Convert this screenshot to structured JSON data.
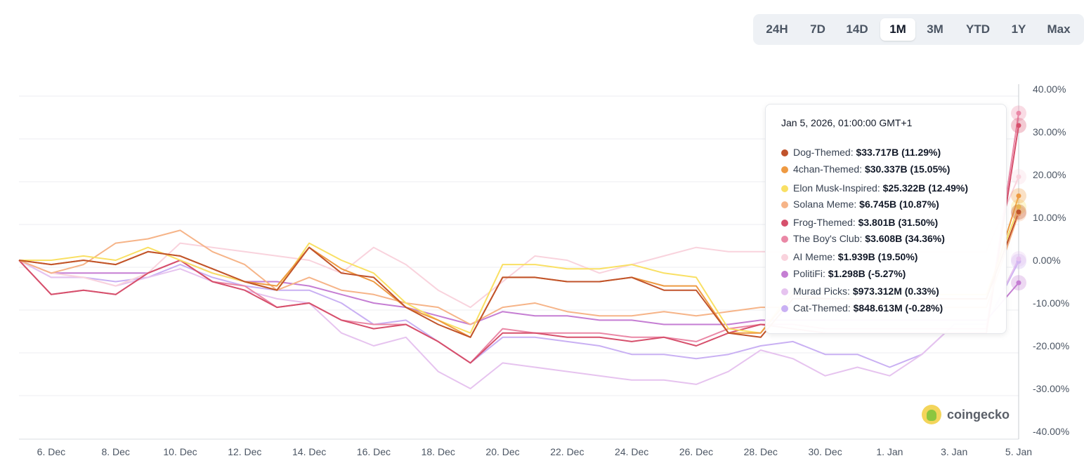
{
  "range_selector": {
    "options": [
      "24H",
      "7D",
      "14D",
      "1M",
      "3M",
      "YTD",
      "1Y",
      "Max"
    ],
    "active": "1M"
  },
  "tooltip": {
    "date": "Jan 5, 2026, 01:00:00 GMT+1",
    "rows": [
      {
        "name": "Dog-Themed:",
        "value": "$33.717B (11.29%)",
        "color": "#c0532b"
      },
      {
        "name": "4chan-Themed:",
        "value": "$30.337B (15.05%)",
        "color": "#ee9a42"
      },
      {
        "name": "Elon Musk-Inspired:",
        "value": "$25.322B (12.49%)",
        "color": "#f9e064"
      },
      {
        "name": "Solana Meme:",
        "value": "$6.745B (10.87%)",
        "color": "#f6b488"
      },
      {
        "name": "Frog-Themed:",
        "value": "$3.801B (31.50%)",
        "color": "#d6506c"
      },
      {
        "name": "The Boy's Club:",
        "value": "$3.608B (34.36%)",
        "color": "#ea88a6"
      },
      {
        "name": "AI Meme:",
        "value": "$1.939B (19.50%)",
        "color": "#f9d3dd"
      },
      {
        "name": "PolitiFi:",
        "value": "$1.298B (-5.27%)",
        "color": "#c57ed3"
      },
      {
        "name": "Murad Picks:",
        "value": "$973.312M (0.33%)",
        "color": "#e6c3ef"
      },
      {
        "name": "Cat-Themed:",
        "value": "$848.613M (-0.28%)",
        "color": "#c9b0f3"
      }
    ]
  },
  "brand": {
    "name": "coingecko"
  },
  "chart_data": {
    "type": "line",
    "x": [
      "5. Dec",
      "6. Dec",
      "7. Dec",
      "8. Dec",
      "9. Dec",
      "10. Dec",
      "11. Dec",
      "12. Dec",
      "13. Dec",
      "14. Dec",
      "15. Dec",
      "16. Dec",
      "17. Dec",
      "18. Dec",
      "19. Dec",
      "20. Dec",
      "21. Dec",
      "22. Dec",
      "23. Dec",
      "24. Dec",
      "25. Dec",
      "26. Dec",
      "27. Dec",
      "28. Dec",
      "29. Dec",
      "30. Dec",
      "31. Dec",
      "1. Jan",
      "2. Jan",
      "3. Jan",
      "4. Jan",
      "5. Jan"
    ],
    "x_tick_labels": [
      "6. Dec",
      "8. Dec",
      "10. Dec",
      "12. Dec",
      "14. Dec",
      "16. Dec",
      "18. Dec",
      "20. Dec",
      "22. Dec",
      "24. Dec",
      "26. Dec",
      "28. Dec",
      "30. Dec",
      "1. Jan",
      "3. Jan",
      "5. Jan"
    ],
    "y_tick_labels": [
      "40.00%",
      "30.00%",
      "20.00%",
      "10.00%",
      "0.00%",
      "-10.00%",
      "-20.00%",
      "-30.00%",
      "-40.00%"
    ],
    "ylim": [
      -40,
      40
    ],
    "y_unit": "%",
    "grid": true,
    "series": [
      {
        "name": "Dog-Themed",
        "color": "#c0532b",
        "values": [
          0,
          -1,
          0,
          -1,
          2,
          1,
          -2,
          -5,
          -7,
          3,
          -3,
          -4,
          -11,
          -15,
          -18,
          -4,
          -4,
          -5,
          -5,
          -4,
          -7,
          -7,
          -17,
          -18,
          -9,
          -9,
          -9,
          -9,
          -9,
          -9,
          -9,
          11.29
        ]
      },
      {
        "name": "4chan-Themed",
        "color": "#ee9a42",
        "values": [
          0,
          -1,
          0,
          -1,
          2,
          1,
          -2,
          -5,
          -6,
          3,
          -2,
          -5,
          -11,
          -14,
          -18,
          -4,
          -4,
          -5,
          -5,
          -4,
          -6,
          -6,
          -17,
          -17,
          -8,
          -9,
          -9,
          -9,
          -9,
          -9,
          -9,
          15.05
        ]
      },
      {
        "name": "Elon Musk-Inspired",
        "color": "#f9e064",
        "values": [
          0,
          0,
          1,
          0,
          3,
          0,
          -3,
          -5,
          -7,
          4,
          0,
          -3,
          -10,
          -14,
          -17,
          -1,
          -1,
          -2,
          -2,
          -1,
          -3,
          -4,
          -16,
          -17,
          -7,
          -8,
          -8,
          -8,
          -8,
          -8,
          -8,
          12.49
        ]
      },
      {
        "name": "Solana Meme",
        "color": "#f6b488",
        "values": [
          0,
          -3,
          -1,
          4,
          5,
          7,
          2,
          -1,
          -7,
          -4,
          -7,
          -8,
          -10,
          -11,
          -15,
          -11,
          -10,
          -12,
          -13,
          -13,
          -12,
          -13,
          -12,
          -11,
          -11,
          -11,
          -11,
          -11,
          -11,
          -11,
          -11,
          10.87
        ]
      },
      {
        "name": "Frog-Themed",
        "color": "#d6506c",
        "values": [
          0,
          -8,
          -7,
          -8,
          -3,
          0,
          -5,
          -7,
          -11,
          -10,
          -14,
          -16,
          -15,
          -19,
          -24,
          -17,
          -17,
          -18,
          -18,
          -19,
          -18,
          -20,
          -17,
          -15,
          -16,
          -17,
          -17,
          -17,
          -17,
          -17,
          -17,
          31.5
        ]
      },
      {
        "name": "The Boy's Club",
        "color": "#ea88a6",
        "values": [
          0,
          -8,
          -7,
          -8,
          -3,
          0,
          -5,
          -6,
          -11,
          -10,
          -14,
          -15,
          -15,
          -19,
          -24,
          -16,
          -17,
          -17,
          -17,
          -18,
          -18,
          -19,
          -16,
          -15,
          -15,
          -16,
          -16,
          -16,
          -16,
          -16,
          -16,
          34.36
        ]
      },
      {
        "name": "AI Meme",
        "color": "#f9d3dd",
        "values": [
          0,
          -3,
          -4,
          -6,
          -3,
          4,
          3,
          2,
          1,
          0,
          -3,
          3,
          -1,
          -7,
          -11,
          -5,
          1,
          0,
          -3,
          -1,
          1,
          3,
          2,
          2,
          2,
          2,
          2,
          2,
          2,
          2,
          2,
          19.5
        ]
      },
      {
        "name": "PolitiFi",
        "color": "#c57ed3",
        "values": [
          0,
          -3,
          -3,
          -3,
          -3,
          0,
          -3,
          -5,
          -5,
          -6,
          -8,
          -10,
          -11,
          -13,
          -15,
          -12,
          -13,
          -13,
          -14,
          -14,
          -15,
          -15,
          -15,
          -14,
          -14,
          -14,
          -14,
          -14,
          -14,
          -14,
          -14,
          -5.27
        ]
      },
      {
        "name": "Murad Picks",
        "color": "#e6c3ef",
        "values": [
          0,
          -4,
          -4,
          -6,
          -4,
          -2,
          -5,
          -7,
          -9,
          -10,
          -17,
          -20,
          -18,
          -26,
          -30,
          -24,
          -25,
          -26,
          -27,
          -28,
          -28,
          -29,
          -26,
          -21,
          -23,
          -27,
          -25,
          -27,
          -22,
          -15,
          -15,
          0.33
        ]
      },
      {
        "name": "Cat-Themed",
        "color": "#c9b0f3",
        "values": [
          0,
          -4,
          -4,
          -5,
          -4,
          -1,
          -4,
          -6,
          -7,
          -7,
          -10,
          -15,
          -14,
          -19,
          -24,
          -18,
          -18,
          -19,
          -20,
          -22,
          -22,
          -23,
          -22,
          -20,
          -19,
          -22,
          -22,
          -25,
          -22,
          -15,
          -15,
          -0.28
        ]
      }
    ]
  }
}
